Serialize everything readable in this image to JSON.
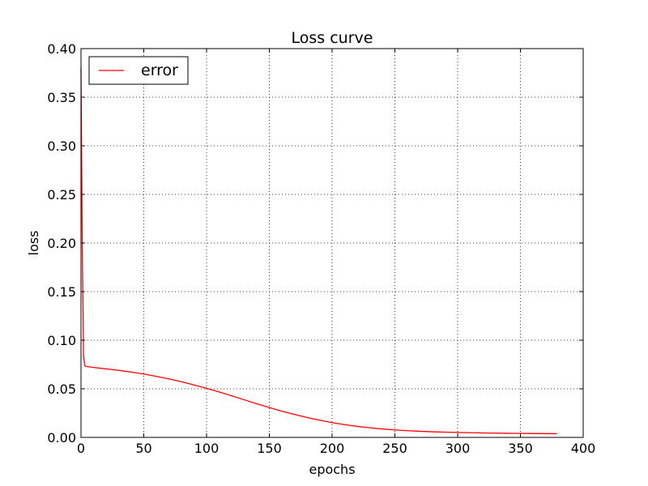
{
  "chart_data": {
    "type": "line",
    "title": "Loss curve",
    "xlabel": "epochs",
    "ylabel": "loss",
    "xlim": [
      0,
      400
    ],
    "ylim": [
      0.0,
      0.4
    ],
    "x_ticks": [
      0,
      50,
      100,
      150,
      200,
      250,
      300,
      350,
      400
    ],
    "x_tick_labels": [
      "0",
      "50",
      "100",
      "150",
      "200",
      "250",
      "300",
      "350",
      "400"
    ],
    "y_ticks": [
      0.0,
      0.05,
      0.1,
      0.15,
      0.2,
      0.25,
      0.3,
      0.35,
      0.4
    ],
    "y_tick_labels": [
      "0.00",
      "0.05",
      "0.10",
      "0.15",
      "0.20",
      "0.25",
      "0.30",
      "0.35",
      "0.40"
    ],
    "grid": true,
    "legend_position": "top-left",
    "series": [
      {
        "name": "error",
        "color": "#ff0000",
        "x": [
          0,
          1,
          2,
          3,
          4,
          10,
          20,
          30,
          40,
          50,
          60,
          70,
          80,
          90,
          100,
          110,
          120,
          130,
          140,
          150,
          160,
          170,
          180,
          190,
          200,
          210,
          220,
          230,
          240,
          250,
          260,
          270,
          280,
          290,
          300,
          320,
          340,
          360,
          379
        ],
        "y": [
          0.38,
          0.2,
          0.085,
          0.074,
          0.073,
          0.072,
          0.0705,
          0.069,
          0.0672,
          0.0652,
          0.0628,
          0.0602,
          0.0573,
          0.054,
          0.0505,
          0.0468,
          0.0428,
          0.0387,
          0.0346,
          0.0307,
          0.027,
          0.0236,
          0.0205,
          0.0177,
          0.0152,
          0.0131,
          0.0113,
          0.0099,
          0.0087,
          0.0077,
          0.0069,
          0.0063,
          0.0058,
          0.0054,
          0.0051,
          0.0046,
          0.0042,
          0.004,
          0.0038
        ]
      }
    ]
  }
}
